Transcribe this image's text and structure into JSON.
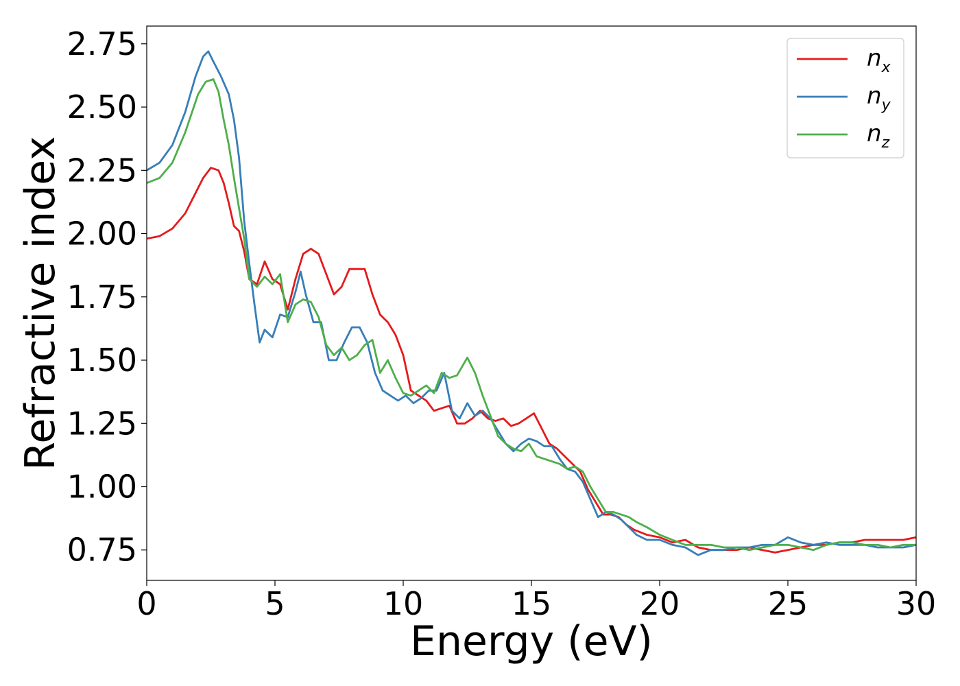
{
  "chart_data": {
    "type": "line",
    "title": "",
    "xlabel": "Energy (eV)",
    "ylabel": "Refractive index",
    "xlim": [
      0,
      30
    ],
    "ylim": [
      0.63,
      2.82
    ],
    "xticks": [
      0,
      5,
      10,
      15,
      20,
      25,
      30
    ],
    "xtick_labels": [
      "0",
      "5",
      "10",
      "15",
      "20",
      "25",
      "30"
    ],
    "yticks": [
      0.75,
      1.0,
      1.25,
      1.5,
      1.75,
      2.0,
      2.25,
      2.5,
      2.75
    ],
    "ytick_labels": [
      "0.75",
      "1.00",
      "1.25",
      "1.50",
      "1.75",
      "2.00",
      "2.25",
      "2.50",
      "2.75"
    ],
    "grid": false,
    "legend_position": "top-right",
    "series": [
      {
        "name": "n_x",
        "legend_base": "n",
        "legend_sub": "x",
        "color": "#e41a1c",
        "x": [
          0,
          0.5,
          1.0,
          1.5,
          1.9,
          2.2,
          2.5,
          2.8,
          3.0,
          3.2,
          3.4,
          3.6,
          3.8,
          4.0,
          4.3,
          4.6,
          4.9,
          5.2,
          5.5,
          5.8,
          6.1,
          6.4,
          6.7,
          7.0,
          7.3,
          7.6,
          7.9,
          8.2,
          8.5,
          8.8,
          9.1,
          9.4,
          9.7,
          10.0,
          10.3,
          10.6,
          10.9,
          11.2,
          11.5,
          11.8,
          12.1,
          12.4,
          12.7,
          13.0,
          13.3,
          13.6,
          13.9,
          14.2,
          14.5,
          14.8,
          15.1,
          15.4,
          15.7,
          16.0,
          16.3,
          16.6,
          16.9,
          17.2,
          17.5,
          17.8,
          18.1,
          18.4,
          18.7,
          19.0,
          19.5,
          20.0,
          20.5,
          21.0,
          21.5,
          22.0,
          22.5,
          23.0,
          23.5,
          24.0,
          24.5,
          25.0,
          25.5,
          26.0,
          26.5,
          27.0,
          27.5,
          28.0,
          28.5,
          29.0,
          29.5,
          30.0
        ],
        "y": [
          1.98,
          1.99,
          2.02,
          2.08,
          2.16,
          2.22,
          2.26,
          2.25,
          2.2,
          2.12,
          2.03,
          2.01,
          1.93,
          1.82,
          1.8,
          1.89,
          1.82,
          1.8,
          1.7,
          1.82,
          1.92,
          1.94,
          1.92,
          1.84,
          1.76,
          1.79,
          1.86,
          1.86,
          1.86,
          1.76,
          1.68,
          1.65,
          1.6,
          1.52,
          1.38,
          1.36,
          1.34,
          1.3,
          1.31,
          1.32,
          1.25,
          1.25,
          1.27,
          1.3,
          1.27,
          1.26,
          1.27,
          1.24,
          1.25,
          1.27,
          1.29,
          1.23,
          1.17,
          1.15,
          1.12,
          1.09,
          1.06,
          0.99,
          0.94,
          0.89,
          0.89,
          0.88,
          0.85,
          0.83,
          0.81,
          0.8,
          0.78,
          0.79,
          0.76,
          0.75,
          0.75,
          0.75,
          0.76,
          0.75,
          0.74,
          0.75,
          0.76,
          0.77,
          0.77,
          0.78,
          0.78,
          0.79,
          0.79,
          0.79,
          0.79,
          0.8
        ]
      },
      {
        "name": "n_y",
        "legend_base": "n",
        "legend_sub": "y",
        "color": "#377eb8",
        "x": [
          0,
          0.5,
          1.0,
          1.5,
          1.9,
          2.2,
          2.4,
          2.6,
          2.9,
          3.2,
          3.4,
          3.6,
          3.8,
          4.0,
          4.2,
          4.4,
          4.6,
          4.9,
          5.2,
          5.5,
          5.8,
          6.0,
          6.2,
          6.5,
          6.8,
          7.1,
          7.4,
          7.7,
          8.0,
          8.3,
          8.6,
          8.9,
          9.2,
          9.5,
          9.8,
          10.1,
          10.4,
          10.7,
          11.0,
          11.3,
          11.6,
          11.9,
          12.2,
          12.5,
          12.8,
          13.1,
          13.4,
          13.7,
          14.0,
          14.3,
          14.6,
          14.9,
          15.2,
          15.5,
          15.8,
          16.1,
          16.4,
          16.7,
          17.0,
          17.3,
          17.6,
          17.9,
          18.2,
          18.5,
          18.8,
          19.1,
          19.5,
          20.0,
          20.5,
          21.0,
          21.5,
          22.0,
          22.5,
          23.0,
          23.5,
          24.0,
          24.5,
          25.0,
          25.5,
          26.0,
          26.5,
          27.0,
          27.5,
          28.0,
          28.5,
          29.0,
          29.5,
          30.0
        ],
        "y": [
          2.25,
          2.28,
          2.35,
          2.48,
          2.62,
          2.7,
          2.72,
          2.68,
          2.62,
          2.55,
          2.45,
          2.3,
          2.05,
          1.88,
          1.72,
          1.57,
          1.62,
          1.59,
          1.68,
          1.67,
          1.77,
          1.85,
          1.76,
          1.65,
          1.65,
          1.5,
          1.5,
          1.57,
          1.63,
          1.63,
          1.57,
          1.45,
          1.38,
          1.36,
          1.34,
          1.36,
          1.33,
          1.35,
          1.38,
          1.38,
          1.45,
          1.3,
          1.27,
          1.33,
          1.28,
          1.3,
          1.27,
          1.22,
          1.17,
          1.14,
          1.17,
          1.19,
          1.18,
          1.16,
          1.16,
          1.11,
          1.07,
          1.06,
          1.02,
          0.95,
          0.88,
          0.9,
          0.89,
          0.87,
          0.84,
          0.81,
          0.79,
          0.79,
          0.77,
          0.76,
          0.73,
          0.75,
          0.75,
          0.76,
          0.76,
          0.77,
          0.77,
          0.8,
          0.78,
          0.77,
          0.78,
          0.77,
          0.77,
          0.77,
          0.76,
          0.76,
          0.76,
          0.77
        ]
      },
      {
        "name": "n_z",
        "legend_base": "n",
        "legend_sub": "z",
        "color": "#4daf4a",
        "x": [
          0,
          0.5,
          1.0,
          1.5,
          2.0,
          2.3,
          2.6,
          2.8,
          3.0,
          3.2,
          3.4,
          3.6,
          3.8,
          4.0,
          4.3,
          4.6,
          4.9,
          5.2,
          5.5,
          5.8,
          6.1,
          6.4,
          6.7,
          7.0,
          7.3,
          7.6,
          7.9,
          8.2,
          8.5,
          8.8,
          9.1,
          9.4,
          9.7,
          10.0,
          10.3,
          10.6,
          10.9,
          11.2,
          11.5,
          11.8,
          12.1,
          12.5,
          12.8,
          13.1,
          13.4,
          13.7,
          14.0,
          14.3,
          14.6,
          14.9,
          15.2,
          15.5,
          15.8,
          16.1,
          16.4,
          16.7,
          17.0,
          17.3,
          17.6,
          17.9,
          18.2,
          18.5,
          18.8,
          19.1,
          19.5,
          20.0,
          20.5,
          21.0,
          21.5,
          22.0,
          22.5,
          23.0,
          23.5,
          24.0,
          24.5,
          25.0,
          25.5,
          26.0,
          26.5,
          27.0,
          27.5,
          28.0,
          28.5,
          29.0,
          29.5,
          30.0
        ],
        "y": [
          2.2,
          2.22,
          2.28,
          2.4,
          2.55,
          2.6,
          2.61,
          2.56,
          2.45,
          2.35,
          2.22,
          2.1,
          1.98,
          1.82,
          1.79,
          1.83,
          1.8,
          1.84,
          1.65,
          1.72,
          1.74,
          1.73,
          1.67,
          1.56,
          1.52,
          1.55,
          1.5,
          1.52,
          1.56,
          1.58,
          1.45,
          1.5,
          1.43,
          1.37,
          1.36,
          1.38,
          1.4,
          1.37,
          1.45,
          1.43,
          1.44,
          1.51,
          1.45,
          1.36,
          1.28,
          1.2,
          1.17,
          1.15,
          1.14,
          1.17,
          1.12,
          1.11,
          1.1,
          1.09,
          1.07,
          1.08,
          1.06,
          1.0,
          0.95,
          0.9,
          0.9,
          0.89,
          0.88,
          0.86,
          0.84,
          0.81,
          0.79,
          0.77,
          0.77,
          0.77,
          0.76,
          0.76,
          0.75,
          0.76,
          0.77,
          0.77,
          0.76,
          0.75,
          0.77,
          0.78,
          0.78,
          0.77,
          0.77,
          0.76,
          0.77,
          0.77
        ]
      }
    ]
  }
}
